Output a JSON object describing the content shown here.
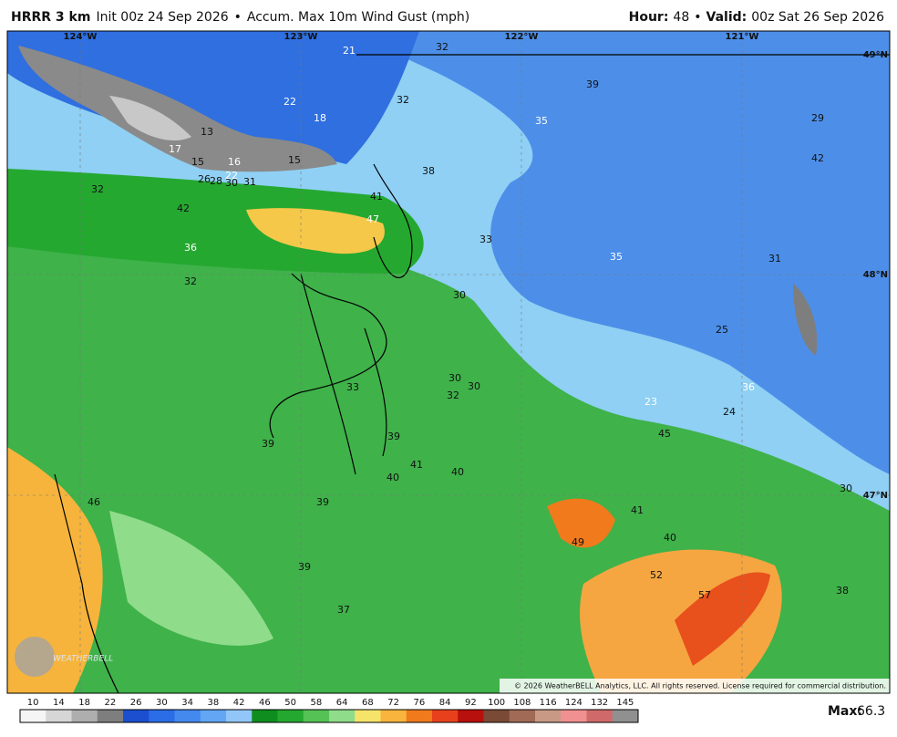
{
  "header": {
    "model": "HRRR 3 km",
    "init": "Init 00z 24 Sep 2026",
    "bullet": "•",
    "field": "Accum. Max 10m Wind Gust (mph)",
    "hour_label": "Hour:",
    "hour": "48",
    "valid_label": "Valid:",
    "valid": "00z Sat 26 Sep 2026"
  },
  "map": {
    "grid_labels": [
      "124°W",
      "123°W",
      "122°W",
      "121°W",
      "49°N",
      "48°N",
      "47°N"
    ],
    "values": [
      "21",
      "32",
      "39",
      "32",
      "35",
      "29",
      "22",
      "18",
      "13",
      "17",
      "15",
      "16",
      "15",
      "22",
      "26",
      "28",
      "30",
      "31",
      "32",
      "38",
      "41",
      "42",
      "47",
      "33",
      "42",
      "35",
      "31",
      "36",
      "32",
      "30",
      "25",
      "33",
      "30",
      "30",
      "32",
      "23",
      "36",
      "24",
      "45",
      "39",
      "39",
      "41",
      "40",
      "40",
      "30",
      "46",
      "39",
      "41",
      "49",
      "40",
      "39",
      "52",
      "57",
      "38",
      "37"
    ],
    "copyright": "© 2026 WeatherBELL Analytics, LLC. All rights reserved. License required for commercial distribution.",
    "watermark": "WEATHERBELL"
  },
  "scale": {
    "ticks": [
      "10",
      "14",
      "18",
      "22",
      "26",
      "30",
      "34",
      "38",
      "42",
      "46",
      "50",
      "58",
      "64",
      "68",
      "72",
      "76",
      "84",
      "92",
      "100",
      "108",
      "116",
      "124",
      "132",
      "145"
    ],
    "colors": [
      "#f5f5f5",
      "#d6d6d6",
      "#aeaeae",
      "#7e7e7e",
      "#1c4fd0",
      "#2a6de6",
      "#4389ee",
      "#62a6f4",
      "#92c6f8",
      "#0f8e1f",
      "#25a82f",
      "#55c255",
      "#8fdc8a",
      "#f6e36a",
      "#f8b43c",
      "#f07a1c",
      "#e8401c",
      "#b8100c",
      "#7a4a36",
      "#a06a56",
      "#c89a86",
      "#f09090",
      "#d06a6a",
      "#909090"
    ],
    "max_label": "Max:",
    "max": "66.3"
  }
}
